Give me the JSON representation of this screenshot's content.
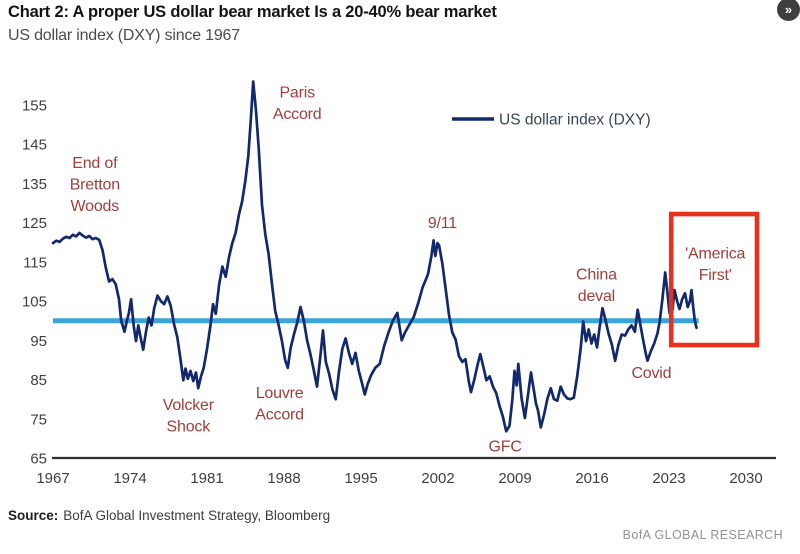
{
  "page": {
    "title": "Chart 2: A proper US dollar bear market Is a 20-40% bear market",
    "subtitle": "US dollar index (DXY) since 1967",
    "source_label": "Source:",
    "source_text": "BofA Global Investment Strategy, Bloomberg",
    "brand": "BofA GLOBAL RESEARCH",
    "nav_button_glyph": "»"
  },
  "colors": {
    "series_line": "#13296e",
    "reference_line": "#3aa5d9",
    "highlight_box": "#e5311e",
    "annotation_text": "#a03f3d",
    "axis_text": "#3f3f3f",
    "axis_line": "#2e2e2e",
    "legend_text": "#37445c",
    "title_text": "#141414",
    "subtitle_text": "#4c4c4c",
    "source_text": "#3c3c3c",
    "brand_text": "#909397"
  },
  "chart_data": {
    "type": "line",
    "title": "Chart 2: A proper US dollar bear market Is a 20-40% bear market",
    "subtitle": "US dollar index (DXY) since 1967",
    "xlabel": "",
    "ylabel": "",
    "grid": false,
    "legend_position": "top-center",
    "x_ticks": [
      1967,
      1974,
      1981,
      1988,
      1995,
      2002,
      2009,
      2016,
      2023,
      2030
    ],
    "y_ticks": [
      65,
      75,
      85,
      95,
      105,
      115,
      125,
      135,
      145,
      155
    ],
    "xlim": [
      1966.5,
      2032.5
    ],
    "ylim": [
      65,
      158
    ],
    "legend": [
      {
        "label": "US dollar index (DXY)"
      }
    ],
    "reference_line": {
      "value": 100,
      "year_start": 1967.0,
      "year_end": 2025.7
    },
    "highlight_box": {
      "year_start": 2023.2,
      "year_end": 2031.0,
      "value_low": 93.8,
      "value_high": 127.2
    },
    "annotations": [
      {
        "label": "End of Bretton Woods",
        "lines": [
          "End of",
          "Bretton",
          "Woods"
        ],
        "year": 1970.8,
        "value": 139.0
      },
      {
        "label": "Volcker Shock",
        "lines": [
          "Volcker",
          "Shock"
        ],
        "year": 1979.3,
        "value": 77.3
      },
      {
        "label": "Paris Accord",
        "lines": [
          "Paris",
          "Accord"
        ],
        "year": 1989.2,
        "value": 156.9
      },
      {
        "label": "Louvre Accord",
        "lines": [
          "Louvre",
          "Accord"
        ],
        "year": 1987.6,
        "value": 80.3
      },
      {
        "label": "9/11",
        "lines": [
          "9/11"
        ],
        "year": 2002.4,
        "value": 123.7
      },
      {
        "label": "GFC",
        "lines": [
          "GFC"
        ],
        "year": 2008.1,
        "value": 66.6
      },
      {
        "label": "China deval",
        "lines": [
          "China",
          "deval"
        ],
        "year": 2016.4,
        "value": 110.5
      },
      {
        "label": "Covid",
        "lines": [
          "Covid"
        ],
        "year": 2021.4,
        "value": 85.4
      },
      {
        "label": "'America First'",
        "lines": [
          "'America",
          "First'"
        ],
        "year": 2027.2,
        "value": 115.9
      }
    ],
    "series": [
      {
        "name": "US dollar index (DXY)",
        "points": [
          [
            1967.0,
            119.8
          ],
          [
            1967.3,
            120.4
          ],
          [
            1967.6,
            120.1
          ],
          [
            1967.9,
            120.9
          ],
          [
            1968.2,
            121.4
          ],
          [
            1968.5,
            121.1
          ],
          [
            1968.8,
            121.9
          ],
          [
            1969.1,
            121.5
          ],
          [
            1969.4,
            122.4
          ],
          [
            1969.7,
            121.7
          ],
          [
            1970.0,
            121.2
          ],
          [
            1970.3,
            121.6
          ],
          [
            1970.6,
            120.8
          ],
          [
            1970.9,
            121.1
          ],
          [
            1971.2,
            120.6
          ],
          [
            1971.5,
            118.0
          ],
          [
            1971.8,
            113.5
          ],
          [
            1972.1,
            110.0
          ],
          [
            1972.4,
            110.6
          ],
          [
            1972.7,
            109.3
          ],
          [
            1973.0,
            105.5
          ],
          [
            1973.2,
            100.0
          ],
          [
            1973.5,
            97.2
          ],
          [
            1973.7,
            99.8
          ],
          [
            1973.9,
            102.0
          ],
          [
            1974.1,
            105.5
          ],
          [
            1974.35,
            98.5
          ],
          [
            1974.55,
            94.8
          ],
          [
            1974.75,
            98.8
          ],
          [
            1975.0,
            95.2
          ],
          [
            1975.2,
            92.6
          ],
          [
            1975.45,
            97.2
          ],
          [
            1975.7,
            100.8
          ],
          [
            1975.95,
            98.8
          ],
          [
            1976.2,
            103.2
          ],
          [
            1976.5,
            106.4
          ],
          [
            1976.8,
            105.0
          ],
          [
            1977.1,
            104.2
          ],
          [
            1977.4,
            106.2
          ],
          [
            1977.7,
            103.8
          ],
          [
            1978.0,
            99.2
          ],
          [
            1978.3,
            95.8
          ],
          [
            1978.6,
            90.0
          ],
          [
            1978.85,
            84.8
          ],
          [
            1979.05,
            87.8
          ],
          [
            1979.25,
            85.2
          ],
          [
            1979.5,
            87.2
          ],
          [
            1979.75,
            84.6
          ],
          [
            1980.0,
            86.8
          ],
          [
            1980.2,
            82.8
          ],
          [
            1980.45,
            85.8
          ],
          [
            1980.7,
            88.0
          ],
          [
            1981.0,
            92.8
          ],
          [
            1981.3,
            98.5
          ],
          [
            1981.55,
            104.2
          ],
          [
            1981.8,
            101.8
          ],
          [
            1982.1,
            109.2
          ],
          [
            1982.4,
            113.8
          ],
          [
            1982.7,
            111.2
          ],
          [
            1983.0,
            116.2
          ],
          [
            1983.3,
            119.8
          ],
          [
            1983.6,
            122.4
          ],
          [
            1983.9,
            127.0
          ],
          [
            1984.2,
            130.5
          ],
          [
            1984.5,
            136.0
          ],
          [
            1984.75,
            142.0
          ],
          [
            1985.0,
            152.0
          ],
          [
            1985.2,
            161.0
          ],
          [
            1985.45,
            153.5
          ],
          [
            1985.7,
            144.0
          ],
          [
            1986.0,
            129.5
          ],
          [
            1986.3,
            122.0
          ],
          [
            1986.6,
            117.0
          ],
          [
            1986.9,
            109.5
          ],
          [
            1987.2,
            102.5
          ],
          [
            1987.5,
            99.0
          ],
          [
            1987.8,
            95.0
          ],
          [
            1988.1,
            90.0
          ],
          [
            1988.35,
            88.0
          ],
          [
            1988.6,
            93.0
          ],
          [
            1988.9,
            96.5
          ],
          [
            1989.2,
            99.5
          ],
          [
            1989.5,
            103.5
          ],
          [
            1989.8,
            100.0
          ],
          [
            1990.1,
            95.0
          ],
          [
            1990.4,
            91.5
          ],
          [
            1990.7,
            87.5
          ],
          [
            1991.0,
            83.2
          ],
          [
            1991.3,
            90.8
          ],
          [
            1991.55,
            97.5
          ],
          [
            1991.8,
            89.5
          ],
          [
            1992.1,
            86.5
          ],
          [
            1992.4,
            82.5
          ],
          [
            1992.7,
            80.0
          ],
          [
            1993.0,
            87.0
          ],
          [
            1993.3,
            92.8
          ],
          [
            1993.6,
            95.5
          ],
          [
            1993.9,
            91.8
          ],
          [
            1994.2,
            89.0
          ],
          [
            1994.5,
            91.8
          ],
          [
            1994.8,
            87.2
          ],
          [
            1995.1,
            84.0
          ],
          [
            1995.35,
            81.2
          ],
          [
            1995.6,
            83.8
          ],
          [
            1995.9,
            86.0
          ],
          [
            1996.3,
            88.0
          ],
          [
            1996.7,
            89.0
          ],
          [
            1997.1,
            93.5
          ],
          [
            1997.5,
            97.0
          ],
          [
            1997.9,
            100.0
          ],
          [
            1998.3,
            102.0
          ],
          [
            1998.7,
            95.0
          ],
          [
            1999.0,
            97.0
          ],
          [
            1999.4,
            99.0
          ],
          [
            1999.8,
            101.0
          ],
          [
            2000.2,
            104.5
          ],
          [
            2000.6,
            108.5
          ],
          [
            2000.9,
            110.5
          ],
          [
            2001.1,
            112.0
          ],
          [
            2001.4,
            116.5
          ],
          [
            2001.6,
            120.5
          ],
          [
            2001.75,
            116.5
          ],
          [
            2001.95,
            119.8
          ],
          [
            2002.1,
            119.2
          ],
          [
            2002.4,
            114.5
          ],
          [
            2002.7,
            108.0
          ],
          [
            2003.0,
            101.5
          ],
          [
            2003.3,
            97.0
          ],
          [
            2003.6,
            95.2
          ],
          [
            2003.9,
            91.0
          ],
          [
            2004.2,
            89.5
          ],
          [
            2004.5,
            90.2
          ],
          [
            2004.8,
            84.5
          ],
          [
            2005.0,
            81.8
          ],
          [
            2005.3,
            85.0
          ],
          [
            2005.6,
            88.8
          ],
          [
            2005.85,
            91.5
          ],
          [
            2006.1,
            88.5
          ],
          [
            2006.4,
            84.8
          ],
          [
            2006.7,
            85.8
          ],
          [
            2007.0,
            83.2
          ],
          [
            2007.3,
            81.5
          ],
          [
            2007.6,
            78.2
          ],
          [
            2007.9,
            75.5
          ],
          [
            2008.2,
            71.8
          ],
          [
            2008.5,
            73.2
          ],
          [
            2008.75,
            79.8
          ],
          [
            2008.95,
            87.2
          ],
          [
            2009.15,
            83.5
          ],
          [
            2009.3,
            89.0
          ],
          [
            2009.6,
            80.2
          ],
          [
            2009.9,
            75.2
          ],
          [
            2010.2,
            81.5
          ],
          [
            2010.45,
            86.8
          ],
          [
            2010.7,
            82.5
          ],
          [
            2010.9,
            79.0
          ],
          [
            2011.1,
            77.0
          ],
          [
            2011.35,
            72.8
          ],
          [
            2011.65,
            76.2
          ],
          [
            2011.95,
            80.2
          ],
          [
            2012.25,
            82.8
          ],
          [
            2012.55,
            80.0
          ],
          [
            2012.85,
            79.6
          ],
          [
            2013.15,
            83.2
          ],
          [
            2013.45,
            81.2
          ],
          [
            2013.75,
            80.2
          ],
          [
            2014.05,
            80.0
          ],
          [
            2014.35,
            80.4
          ],
          [
            2014.65,
            85.8
          ],
          [
            2014.95,
            92.5
          ],
          [
            2015.2,
            99.8
          ],
          [
            2015.45,
            94.8
          ],
          [
            2015.7,
            97.8
          ],
          [
            2015.95,
            94.2
          ],
          [
            2016.2,
            96.5
          ],
          [
            2016.45,
            93.2
          ],
          [
            2016.7,
            98.5
          ],
          [
            2016.95,
            103.2
          ],
          [
            2017.2,
            100.5
          ],
          [
            2017.5,
            96.8
          ],
          [
            2017.8,
            94.0
          ],
          [
            2018.1,
            89.8
          ],
          [
            2018.4,
            93.8
          ],
          [
            2018.7,
            96.5
          ],
          [
            2019.0,
            96.2
          ],
          [
            2019.3,
            97.8
          ],
          [
            2019.6,
            98.8
          ],
          [
            2019.9,
            97.2
          ],
          [
            2020.15,
            102.8
          ],
          [
            2020.35,
            99.8
          ],
          [
            2020.6,
            95.8
          ],
          [
            2020.9,
            91.5
          ],
          [
            2021.05,
            89.8
          ],
          [
            2021.35,
            92.2
          ],
          [
            2021.65,
            94.2
          ],
          [
            2021.95,
            96.8
          ],
          [
            2022.15,
            99.8
          ],
          [
            2022.4,
            105.5
          ],
          [
            2022.65,
            112.3
          ],
          [
            2022.85,
            107.5
          ],
          [
            2023.05,
            102.0
          ],
          [
            2023.25,
            101.2
          ],
          [
            2023.5,
            107.8
          ],
          [
            2023.75,
            104.8
          ],
          [
            2023.95,
            103.0
          ],
          [
            2024.2,
            105.5
          ],
          [
            2024.45,
            107.0
          ],
          [
            2024.7,
            103.5
          ],
          [
            2024.9,
            105.0
          ],
          [
            2025.05,
            107.8
          ],
          [
            2025.2,
            103.5
          ],
          [
            2025.35,
            100.0
          ],
          [
            2025.5,
            98.2
          ]
        ]
      }
    ]
  }
}
